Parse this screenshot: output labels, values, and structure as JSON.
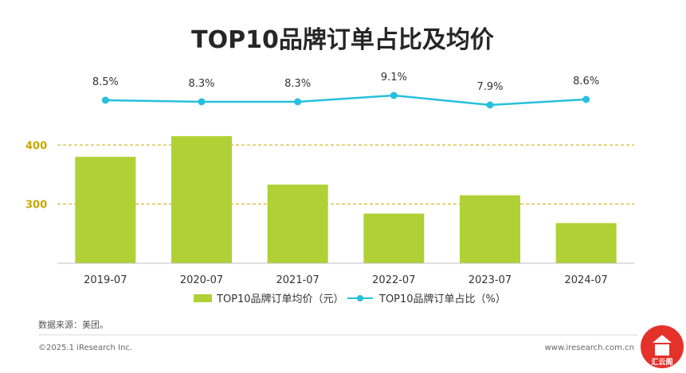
{
  "chart_data": {
    "type": "bar",
    "title": "TOP10品牌订单占比及均价",
    "categories": [
      "2019-07",
      "2020-07",
      "2021-07",
      "2022-07",
      "2023-07",
      "2024-07"
    ],
    "series": [
      {
        "name": "TOP10品牌订单均价（元）",
        "type": "bar",
        "axis": "left",
        "values": [
          380,
          415,
          333,
          284,
          315,
          268
        ]
      },
      {
        "name": "TOP10品牌订单占比（%）",
        "type": "line",
        "axis": "right",
        "values": [
          8.5,
          8.3,
          8.3,
          9.1,
          7.9,
          8.6
        ],
        "labels": [
          "8.5%",
          "8.3%",
          "8.3%",
          "9.1%",
          "7.9%",
          "8.6%"
        ]
      }
    ],
    "yticks": [
      "400",
      "300"
    ],
    "ylim": [
      200,
      430
    ],
    "gridlines": "dashed at 300 and 400",
    "legend_position": "bottom",
    "colors": {
      "bar": "#afd136",
      "line": "#27bfdd",
      "grid": "#c8a800",
      "axis": "#bfbfbf"
    }
  },
  "source": "数据来源：美团。",
  "copyright": "©2025.1 iResearch Inc.",
  "website": "www.iresearch.com.cn",
  "watermark": {
    "icon": "pagoda-icon",
    "text": "汇云阁",
    "color": "#e4322b"
  }
}
